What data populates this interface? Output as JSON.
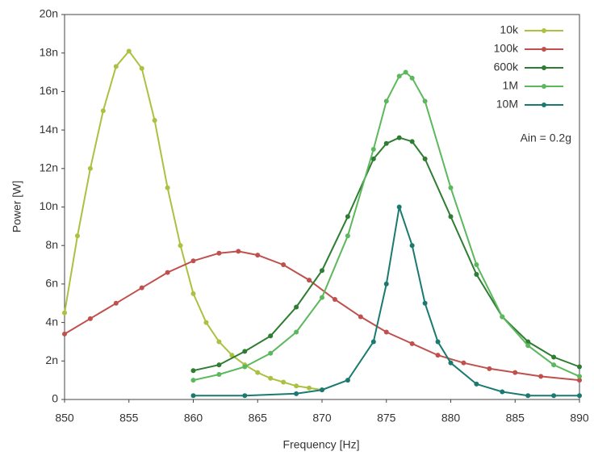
{
  "chart_data": {
    "type": "line",
    "xlabel": "Frequency [Hz]",
    "ylabel": "Power [W]",
    "annotation": "Ain = 0.2g",
    "xlim": [
      850,
      890
    ],
    "xticks": [
      850,
      855,
      860,
      865,
      870,
      875,
      880,
      885,
      890
    ],
    "ylim": [
      0,
      2e-08
    ],
    "yticks": [
      {
        "value": 0,
        "label": "0"
      },
      {
        "value": 2e-09,
        "label": "2n"
      },
      {
        "value": 4e-09,
        "label": "4n"
      },
      {
        "value": 6e-09,
        "label": "6n"
      },
      {
        "value": 8e-09,
        "label": "8n"
      },
      {
        "value": 1e-08,
        "label": "10n"
      },
      {
        "value": 1.2e-08,
        "label": "12n"
      },
      {
        "value": 1.4e-08,
        "label": "14n"
      },
      {
        "value": 1.6e-08,
        "label": "16n"
      },
      {
        "value": 1.8e-08,
        "label": "18n"
      },
      {
        "value": 2e-08,
        "label": "20n"
      }
    ],
    "legend": "upper right",
    "series": [
      {
        "name": "10k",
        "color": "#a9c23f",
        "x": [
          850,
          851,
          852,
          853,
          854,
          855,
          856,
          857,
          858,
          859,
          860,
          861,
          862,
          863,
          864,
          865,
          866,
          867,
          868,
          869,
          870
        ],
        "values": [
          4.5e-09,
          8.5e-09,
          1.2e-08,
          1.5e-08,
          1.73e-08,
          1.81e-08,
          1.72e-08,
          1.45e-08,
          1.1e-08,
          8e-09,
          5.5e-09,
          4e-09,
          3e-09,
          2.3e-09,
          1.8e-09,
          1.4e-09,
          1.1e-09,
          9e-10,
          7e-10,
          6e-10,
          5e-10
        ]
      },
      {
        "name": "100k",
        "color": "#c0504d",
        "x": [
          850,
          852,
          854,
          856,
          858,
          860,
          862,
          863.5,
          865,
          867,
          869,
          871,
          873,
          875,
          877,
          879,
          881,
          883,
          885,
          887,
          890
        ],
        "values": [
          3.4e-09,
          4.2e-09,
          5e-09,
          5.8e-09,
          6.6e-09,
          7.2e-09,
          7.6e-09,
          7.7e-09,
          7.5e-09,
          7e-09,
          6.2e-09,
          5.2e-09,
          4.3e-09,
          3.5e-09,
          2.9e-09,
          2.3e-09,
          1.9e-09,
          1.6e-09,
          1.4e-09,
          1.2e-09,
          1e-09
        ]
      },
      {
        "name": "600k",
        "color": "#2e7d32",
        "x": [
          860,
          862,
          864,
          866,
          868,
          870,
          872,
          874,
          875,
          876,
          877,
          878,
          880,
          882,
          884,
          886,
          888,
          890
        ],
        "values": [
          1.5e-09,
          1.8e-09,
          2.5e-09,
          3.3e-09,
          4.8e-09,
          6.7e-09,
          9.5e-09,
          1.25e-08,
          1.33e-08,
          1.36e-08,
          1.34e-08,
          1.25e-08,
          9.5e-09,
          6.5e-09,
          4.3e-09,
          3e-09,
          2.2e-09,
          1.7e-09
        ]
      },
      {
        "name": "1M",
        "color": "#5cb85c",
        "x": [
          860,
          862,
          864,
          866,
          868,
          870,
          872,
          874,
          875,
          876,
          876.5,
          877,
          878,
          880,
          882,
          884,
          886,
          888,
          890
        ],
        "values": [
          1e-09,
          1.3e-09,
          1.7e-09,
          2.4e-09,
          3.5e-09,
          5.3e-09,
          8.5e-09,
          1.3e-08,
          1.55e-08,
          1.68e-08,
          1.7e-08,
          1.67e-08,
          1.55e-08,
          1.1e-08,
          7e-09,
          4.3e-09,
          2.8e-09,
          1.8e-09,
          1.2e-09
        ]
      },
      {
        "name": "10M",
        "color": "#1a7a70",
        "x": [
          860,
          864,
          868,
          870,
          872,
          874,
          875,
          876,
          877,
          878,
          879,
          880,
          882,
          884,
          886,
          888,
          890
        ],
        "values": [
          2e-10,
          2e-10,
          3e-10,
          5e-10,
          1e-09,
          3e-09,
          6e-09,
          1e-08,
          8e-09,
          5e-09,
          3e-09,
          1.9e-09,
          8e-10,
          4e-10,
          2e-10,
          2e-10,
          2e-10
        ]
      }
    ]
  }
}
